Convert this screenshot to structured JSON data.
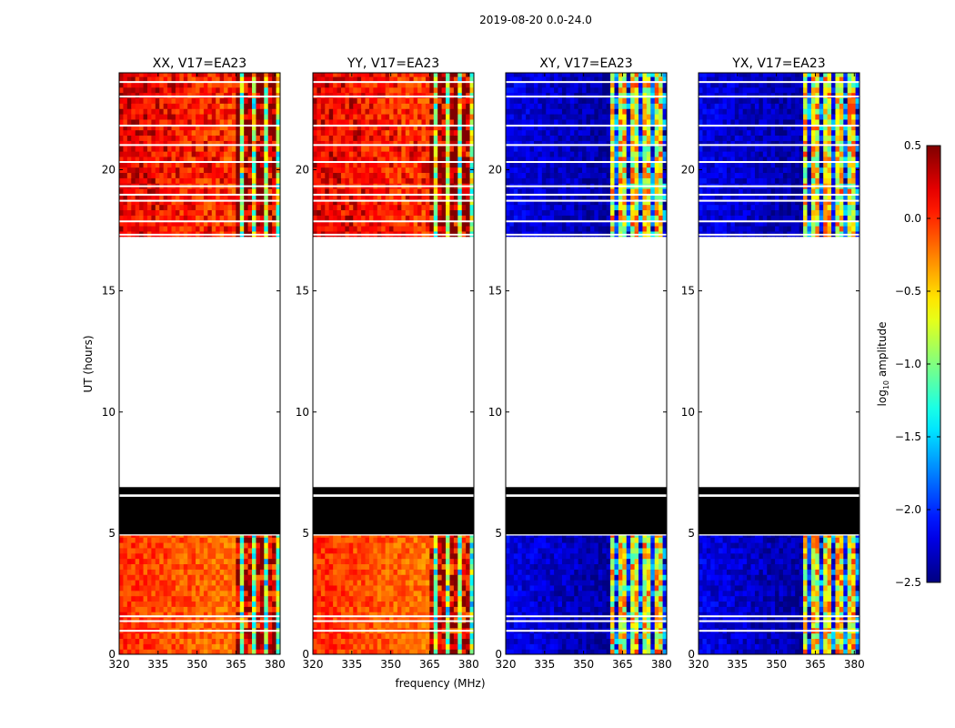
{
  "suptitle": "2019-08-20 0.0-24.0",
  "xlabel": "frequency (MHz)",
  "ylabel": "UT (hours)",
  "colorbar": {
    "label_prefix": "log",
    "label_sub": "10",
    "label_suffix": " amplitude",
    "colormap": "jet",
    "range": [
      -2.5,
      0.5
    ],
    "ticks": [
      0.5,
      0.0,
      -0.5,
      -1.0,
      -1.5,
      -2.0,
      -2.5
    ],
    "tick_labels": [
      "0.5",
      "0.0",
      "−0.5",
      "−1.0",
      "−1.5",
      "−2.0",
      "−2.5"
    ]
  },
  "chart_data": [
    {
      "type": "heatmap",
      "title": "XX, V17=EA23",
      "xlim": [
        320,
        382
      ],
      "ylim": [
        0,
        24
      ],
      "xticks": [
        320,
        335,
        350,
        365,
        380
      ],
      "yticks": [
        0,
        5,
        10,
        15,
        20
      ],
      "base_low_freq": 0.0,
      "base_high_freq": 0.3,
      "late_shift": 0.4,
      "high_freq_start": 364
    },
    {
      "type": "heatmap",
      "title": "YY, V17=EA23",
      "xlim": [
        320,
        382
      ],
      "ylim": [
        0,
        24
      ],
      "xticks": [
        320,
        335,
        350,
        365,
        380
      ],
      "yticks": [
        0,
        5,
        10,
        15,
        20
      ],
      "base_low_freq": 0.0,
      "base_high_freq": 0.3,
      "late_shift": 0.4,
      "high_freq_start": 364
    },
    {
      "type": "heatmap",
      "title": "XY, V17=EA23",
      "xlim": [
        320,
        382
      ],
      "ylim": [
        0,
        24
      ],
      "xticks": [
        320,
        335,
        350,
        365,
        380
      ],
      "yticks": [
        0,
        5,
        10,
        15,
        20
      ],
      "base_low_freq": -2.2,
      "base_high_freq": -0.6,
      "late_shift": 0.0,
      "high_freq_start": 360
    },
    {
      "type": "heatmap",
      "title": "YX, V17=EA23",
      "xlim": [
        320,
        382
      ],
      "ylim": [
        0,
        24
      ],
      "xticks": [
        320,
        335,
        350,
        365,
        380
      ],
      "yticks": [
        0,
        5,
        10,
        15,
        20
      ],
      "base_low_freq": -2.2,
      "base_high_freq": -0.6,
      "late_shift": 0.0,
      "high_freq_start": 360
    }
  ],
  "time_segments": {
    "data_ranges_hours": [
      [
        0.0,
        4.9
      ],
      [
        17.25,
        24.0
      ]
    ],
    "flagged_black_ranges_hours": [
      [
        4.95,
        6.5
      ],
      [
        6.6,
        6.9
      ]
    ],
    "gap_lines_hours": [
      0.95,
      1.35,
      1.55,
      17.3,
      17.85,
      18.7,
      18.95,
      19.3,
      20.3,
      21.0,
      21.8,
      23.0,
      23.6,
      24.0
    ]
  }
}
